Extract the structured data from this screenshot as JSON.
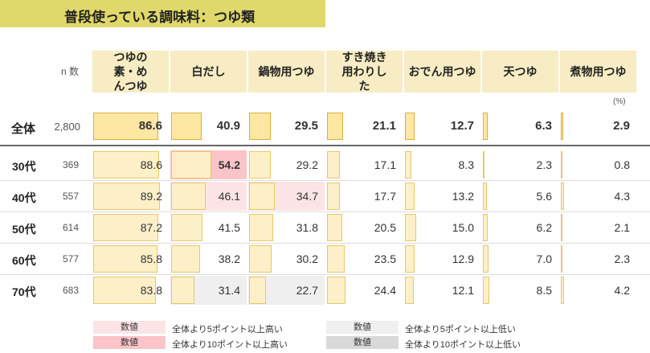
{
  "title": "普段使っている調味料：つゆ類",
  "n_label": "n 数",
  "unit": "(%)",
  "colors": {
    "title_bg": "#e0d86a",
    "header_bg": "#f7ecc3",
    "bar": "#fdf0c8",
    "bar_total": "#fde7a3",
    "high5": "#fce4e6",
    "high10": "#fbc4c8",
    "low5": "#efefef",
    "low10": "#d9d9d9"
  },
  "chart_data": {
    "type": "table",
    "categories": [
      "つゆの素・めんつゆ",
      "白だし",
      "鍋物用つゆ",
      "すき焼き用わりした",
      "おでん用つゆ",
      "天つゆ",
      "煮物用つゆ"
    ],
    "rows": [
      {
        "label": "全体",
        "n": "2,800",
        "values": [
          "86.6",
          "40.9",
          "29.5",
          "21.1",
          "12.7",
          "6.3",
          "2.9"
        ],
        "highlight": [
          "",
          "",
          "",
          "",
          "",
          "",
          ""
        ]
      },
      {
        "label": "30代",
        "n": "369",
        "values": [
          "88.6",
          "54.2",
          "29.2",
          "17.1",
          "8.3",
          "2.3",
          "0.8"
        ],
        "highlight": [
          "",
          "high10",
          "",
          "",
          "",
          "",
          ""
        ]
      },
      {
        "label": "40代",
        "n": "557",
        "values": [
          "89.2",
          "46.1",
          "34.7",
          "17.7",
          "13.2",
          "5.6",
          "4.3"
        ],
        "highlight": [
          "",
          "high5",
          "high5",
          "",
          "",
          "",
          ""
        ]
      },
      {
        "label": "50代",
        "n": "614",
        "values": [
          "87.2",
          "41.5",
          "31.8",
          "20.5",
          "15.0",
          "6.2",
          "2.1"
        ],
        "highlight": [
          "",
          "",
          "",
          "",
          "",
          "",
          ""
        ]
      },
      {
        "label": "60代",
        "n": "577",
        "values": [
          "85.8",
          "38.2",
          "30.2",
          "23.5",
          "12.9",
          "7.0",
          "2.3"
        ],
        "highlight": [
          "",
          "",
          "",
          "",
          "",
          "",
          ""
        ]
      },
      {
        "label": "70代",
        "n": "683",
        "values": [
          "83.8",
          "31.4",
          "22.7",
          "24.4",
          "12.1",
          "8.5",
          "4.2"
        ],
        "highlight": [
          "",
          "low5",
          "low5",
          "",
          "",
          "",
          ""
        ]
      }
    ]
  },
  "legend": {
    "sample": "数値",
    "high5": "全体より5ポイント以上高い",
    "high10": "全体より10ポイント以上高い",
    "low5": "全体より5ポイント以上低い",
    "low10": "全体より10ポイント以上低い"
  }
}
